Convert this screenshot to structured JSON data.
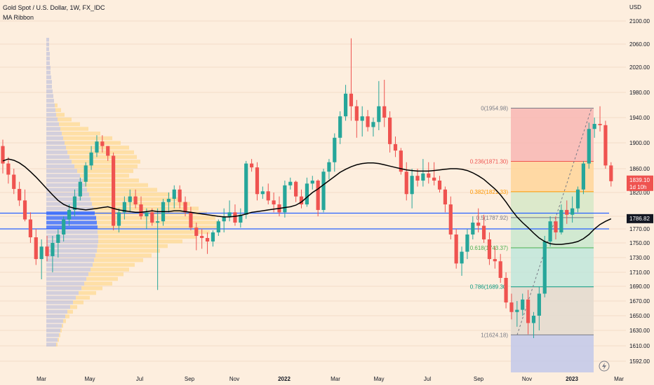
{
  "header": {
    "symbol_title": "Gold Spot / U.S. Dollar, 1W, FX_IDC",
    "indicator": "MA Ribbon",
    "currency": "USD"
  },
  "colors": {
    "background": "#fdeede",
    "up_candle": "#26a69a",
    "down_candle": "#ef5350",
    "ma_line": "#000000",
    "hline": "#2962ff",
    "vp_value_area": "#2962ff",
    "vp_profile": "#9fa8da",
    "vp_up": "#ffd580"
  },
  "chart_data": {
    "type": "candlestick",
    "y_axis": {
      "ylim": [
        1585,
        2112
      ],
      "ticks": [
        2100,
        2060,
        2020,
        1980,
        1940,
        1900,
        1860,
        1820,
        1790,
        1770,
        1750,
        1730,
        1710,
        1690,
        1670,
        1650,
        1630,
        1610,
        1592
      ]
    },
    "x_axis": {
      "labels": [
        "Mar",
        "May",
        "Jul",
        "Sep",
        "Nov",
        "2022",
        "Mar",
        "May",
        "Jul",
        "Sep",
        "Nov",
        "2023",
        "Mar"
      ],
      "bold_labels": [
        "2022",
        "2023"
      ]
    },
    "price_labels": [
      {
        "text": "1839.10",
        "sub": "1d 10h",
        "value": 1839.1,
        "color": "#ef5350"
      },
      {
        "text": "1786.82",
        "value": 1786.82,
        "color": "#131722"
      }
    ],
    "horizontal_lines": [
      1794,
      1770
    ],
    "fibonacci": {
      "levels": [
        {
          "label": "0(1954.98)",
          "value": 1954.98,
          "color": "#787b86"
        },
        {
          "label": "0.236(1871.30)",
          "value": 1871.3,
          "color": "#ef5350"
        },
        {
          "label": "0.382(1821.33)",
          "value": 1821.33,
          "color": "#ff9800"
        },
        {
          "label": "0.5(1787.92)",
          "value": 1787.92,
          "color": "#787b86"
        },
        {
          "label": "0.618(1743.37)",
          "value": 1743.37,
          "color": "#4caf50"
        },
        {
          "label": "0.786(1689.30)",
          "value": 1689.3,
          "color": "#089981"
        },
        {
          "label": "1(1624.18)",
          "value": 1624.18,
          "color": "#787b86"
        }
      ]
    },
    "series": [
      {
        "kind": "ohlc",
        "values": [
          [
            1895,
            1905,
            1852,
            1868
          ],
          [
            1868,
            1878,
            1835,
            1850
          ],
          [
            1850,
            1860,
            1818,
            1826
          ],
          [
            1826,
            1838,
            1803,
            1810
          ],
          [
            1810,
            1825,
            1782,
            1785
          ],
          [
            1785,
            1795,
            1750,
            1758
          ],
          [
            1758,
            1770,
            1720,
            1728
          ],
          [
            1728,
            1755,
            1700,
            1745
          ],
          [
            1745,
            1760,
            1725,
            1732
          ],
          [
            1732,
            1760,
            1710,
            1750
          ],
          [
            1750,
            1770,
            1730,
            1762
          ],
          [
            1762,
            1790,
            1752,
            1785
          ],
          [
            1785,
            1805,
            1775,
            1798
          ],
          [
            1798,
            1825,
            1790,
            1815
          ],
          [
            1815,
            1845,
            1810,
            1838
          ],
          [
            1838,
            1870,
            1830,
            1865
          ],
          [
            1865,
            1895,
            1858,
            1885
          ],
          [
            1885,
            1912,
            1878,
            1902
          ],
          [
            1902,
            1912,
            1885,
            1895
          ],
          [
            1895,
            1895,
            1872,
            1880
          ],
          [
            1880,
            1885,
            1768,
            1775
          ],
          [
            1775,
            1800,
            1765,
            1795
          ],
          [
            1795,
            1815,
            1785,
            1808
          ],
          [
            1808,
            1825,
            1795,
            1815
          ],
          [
            1815,
            1825,
            1800,
            1805
          ],
          [
            1805,
            1815,
            1785,
            1790
          ],
          [
            1790,
            1800,
            1770,
            1795
          ],
          [
            1795,
            1800,
            1775,
            1780
          ],
          [
            1780,
            1800,
            1685,
            1782
          ],
          [
            1782,
            1812,
            1775,
            1808
          ],
          [
            1808,
            1820,
            1795,
            1812
          ],
          [
            1812,
            1832,
            1800,
            1825
          ],
          [
            1825,
            1832,
            1800,
            1808
          ],
          [
            1808,
            1815,
            1790,
            1795
          ],
          [
            1795,
            1802,
            1768,
            1772
          ],
          [
            1772,
            1780,
            1740,
            1760
          ],
          [
            1760,
            1770,
            1742,
            1757
          ],
          [
            1757,
            1765,
            1735,
            1752
          ],
          [
            1752,
            1768,
            1745,
            1765
          ],
          [
            1765,
            1785,
            1760,
            1782
          ],
          [
            1782,
            1800,
            1765,
            1790
          ],
          [
            1790,
            1810,
            1782,
            1795
          ],
          [
            1795,
            1805,
            1775,
            1780
          ],
          [
            1780,
            1800,
            1772,
            1792
          ],
          [
            1792,
            1872,
            1786,
            1868
          ],
          [
            1868,
            1875,
            1855,
            1862
          ],
          [
            1862,
            1870,
            1810,
            1818
          ],
          [
            1818,
            1830,
            1812,
            1822
          ],
          [
            1822,
            1835,
            1805,
            1810
          ],
          [
            1810,
            1820,
            1795,
            1805
          ],
          [
            1805,
            1815,
            1790,
            1795
          ],
          [
            1795,
            1840,
            1788,
            1832
          ],
          [
            1832,
            1845,
            1825,
            1838
          ],
          [
            1838,
            1840,
            1808,
            1815
          ],
          [
            1815,
            1825,
            1800,
            1805
          ],
          [
            1805,
            1845,
            1802,
            1835
          ],
          [
            1835,
            1848,
            1825,
            1840
          ],
          [
            1840,
            1842,
            1790,
            1798
          ],
          [
            1798,
            1860,
            1795,
            1855
          ],
          [
            1855,
            1875,
            1842,
            1870
          ],
          [
            1870,
            1915,
            1855,
            1908
          ],
          [
            1908,
            1950,
            1898,
            1942
          ],
          [
            1942,
            1992,
            1935,
            1978
          ],
          [
            1978,
            2070,
            1935,
            1958
          ],
          [
            1958,
            1968,
            1908,
            1935
          ],
          [
            1935,
            1958,
            1910,
            1942
          ],
          [
            1942,
            1952,
            1918,
            1925
          ],
          [
            1925,
            1940,
            1910,
            1933
          ],
          [
            1933,
            1998,
            1920,
            1958
          ],
          [
            1958,
            2000,
            1925,
            1940
          ],
          [
            1940,
            1950,
            1885,
            1898
          ],
          [
            1898,
            1910,
            1878,
            1888
          ],
          [
            1888,
            1892,
            1850,
            1855
          ],
          [
            1855,
            1870,
            1810,
            1818
          ],
          [
            1818,
            1860,
            1800,
            1848
          ],
          [
            1848,
            1860,
            1830,
            1840
          ],
          [
            1840,
            1875,
            1830,
            1852
          ],
          [
            1852,
            1870,
            1835,
            1845
          ],
          [
            1845,
            1870,
            1832,
            1840
          ],
          [
            1840,
            1848,
            1820,
            1825
          ],
          [
            1825,
            1830,
            1795,
            1805
          ],
          [
            1805,
            1815,
            1755,
            1762
          ],
          [
            1762,
            1770,
            1715,
            1722
          ],
          [
            1722,
            1745,
            1705,
            1738
          ],
          [
            1738,
            1770,
            1728,
            1762
          ],
          [
            1762,
            1790,
            1755,
            1780
          ],
          [
            1780,
            1800,
            1765,
            1775
          ],
          [
            1775,
            1792,
            1750,
            1755
          ],
          [
            1755,
            1765,
            1720,
            1728
          ],
          [
            1728,
            1745,
            1715,
            1725
          ],
          [
            1725,
            1735,
            1695,
            1702
          ],
          [
            1702,
            1710,
            1660,
            1668
          ],
          [
            1668,
            1680,
            1645,
            1655
          ],
          [
            1655,
            1670,
            1635,
            1658
          ],
          [
            1658,
            1680,
            1650,
            1672
          ],
          [
            1672,
            1685,
            1625,
            1640
          ],
          [
            1640,
            1655,
            1620,
            1650
          ],
          [
            1650,
            1690,
            1630,
            1680
          ],
          [
            1680,
            1760,
            1675,
            1752
          ],
          [
            1752,
            1790,
            1745,
            1782
          ],
          [
            1782,
            1790,
            1755,
            1765
          ],
          [
            1765,
            1805,
            1762,
            1798
          ],
          [
            1798,
            1810,
            1778,
            1792
          ],
          [
            1792,
            1815,
            1780,
            1800
          ],
          [
            1800,
            1830,
            1795,
            1825
          ],
          [
            1825,
            1872,
            1818,
            1868
          ],
          [
            1868,
            1932,
            1860,
            1922
          ],
          [
            1922,
            1940,
            1908,
            1930
          ],
          [
            1930,
            1958,
            1918,
            1928
          ],
          [
            1928,
            1935,
            1860,
            1865
          ],
          [
            1865,
            1870,
            1830,
            1839
          ]
        ]
      },
      {
        "kind": "ma",
        "name": "MA Ribbon",
        "values": [
          1872,
          1875,
          1873,
          1869,
          1863,
          1855,
          1846,
          1836,
          1826,
          1817,
          1810,
          1805,
          1802,
          1800,
          1799,
          1798,
          1799,
          1800,
          1801,
          1802,
          1800,
          1798,
          1797,
          1796,
          1795,
          1795,
          1796,
          1797,
          1796,
          1796,
          1796,
          1797,
          1797,
          1796,
          1795,
          1794,
          1793,
          1792,
          1791,
          1790,
          1789,
          1789,
          1790,
          1791,
          1793,
          1795,
          1796,
          1797,
          1798,
          1799,
          1800,
          1801,
          1802,
          1804,
          1808,
          1814,
          1820,
          1826,
          1833,
          1840,
          1847,
          1854,
          1859,
          1863,
          1866,
          1868,
          1869,
          1869,
          1868,
          1866,
          1864,
          1862,
          1860,
          1858,
          1857,
          1856,
          1856,
          1856,
          1857,
          1858,
          1859,
          1860,
          1860,
          1859,
          1857,
          1853,
          1848,
          1842,
          1834,
          1826,
          1817,
          1808,
          1798,
          1789,
          1780,
          1772,
          1764,
          1757,
          1752,
          1749,
          1748,
          1748,
          1749,
          1750,
          1752,
          1756,
          1762,
          1770,
          1777,
          1782,
          1786
        ]
      }
    ]
  }
}
